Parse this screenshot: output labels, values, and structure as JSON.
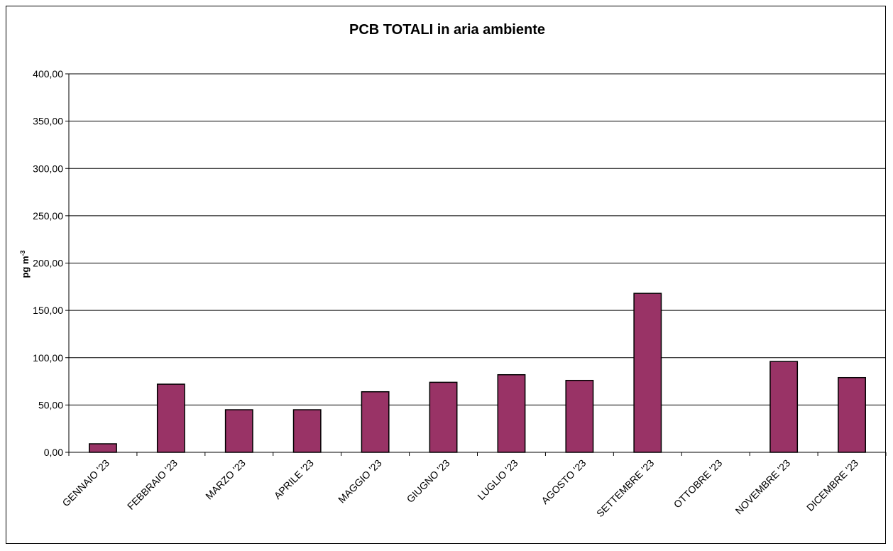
{
  "chart_data": {
    "type": "bar",
    "title": "PCB TOTALI in aria ambiente",
    "xlabel": "",
    "ylabel": "pg m",
    "ylabel_superscript": "-3",
    "ylim": [
      0,
      400
    ],
    "yticks": [
      "0,00",
      "50,00",
      "100,00",
      "150,00",
      "200,00",
      "250,00",
      "300,00",
      "350,00",
      "400,00"
    ],
    "grid": true,
    "categories": [
      "GENNAIO '23",
      "FEBBRAIO '23",
      "MARZO '23",
      "APRILE '23",
      "MAGGIO '23",
      "GIUGNO '23",
      "LUGLIO '23",
      "AGOSTO '23",
      "SETTEMBRE '23",
      "OTTOBRE '23",
      "NOVEMBRE '23",
      "DICEMBRE '23"
    ],
    "values": [
      9,
      72,
      45,
      45,
      64,
      74,
      82,
      76,
      168,
      null,
      96,
      79
    ],
    "bar_color": "#993366"
  }
}
